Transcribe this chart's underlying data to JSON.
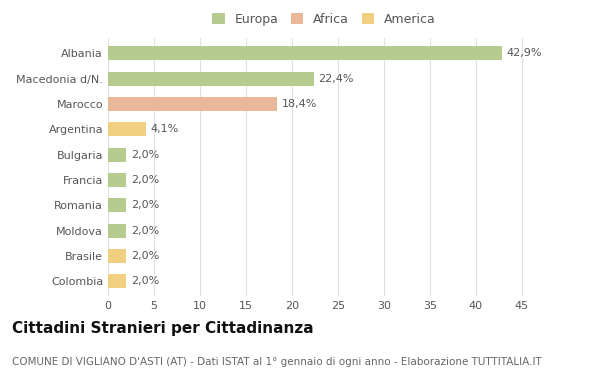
{
  "categories": [
    "Albania",
    "Macedonia d/N.",
    "Marocco",
    "Argentina",
    "Bulgaria",
    "Francia",
    "Romania",
    "Moldova",
    "Brasile",
    "Colombia"
  ],
  "values": [
    42.9,
    22.4,
    18.4,
    4.1,
    2.0,
    2.0,
    2.0,
    2.0,
    2.0,
    2.0
  ],
  "labels": [
    "42,9%",
    "22,4%",
    "18,4%",
    "4,1%",
    "2,0%",
    "2,0%",
    "2,0%",
    "2,0%",
    "2,0%",
    "2,0%"
  ],
  "colors": [
    "#b5cc8e",
    "#b5cc8e",
    "#e8b898",
    "#f0d080",
    "#b5cc8e",
    "#b5cc8e",
    "#b5cc8e",
    "#b5cc8e",
    "#f0d080",
    "#f0d080"
  ],
  "legend": [
    {
      "label": "Europa",
      "color": "#b5cc8e"
    },
    {
      "label": "Africa",
      "color": "#e8b898"
    },
    {
      "label": "America",
      "color": "#f0d080"
    }
  ],
  "title": "Cittadini Stranieri per Cittadinanza",
  "subtitle": "COMUNE DI VIGLIANO D'ASTI (AT) - Dati ISTAT al 1° gennaio di ogni anno - Elaborazione TUTTITALIA.IT",
  "xlim": [
    0,
    47
  ],
  "xticks": [
    0,
    5,
    10,
    15,
    20,
    25,
    30,
    35,
    40,
    45
  ],
  "background_color": "#ffffff",
  "grid_color": "#e0e0e0",
  "bar_height": 0.55,
  "title_fontsize": 11,
  "subtitle_fontsize": 7.5,
  "label_fontsize": 8,
  "tick_fontsize": 8,
  "legend_fontsize": 9
}
